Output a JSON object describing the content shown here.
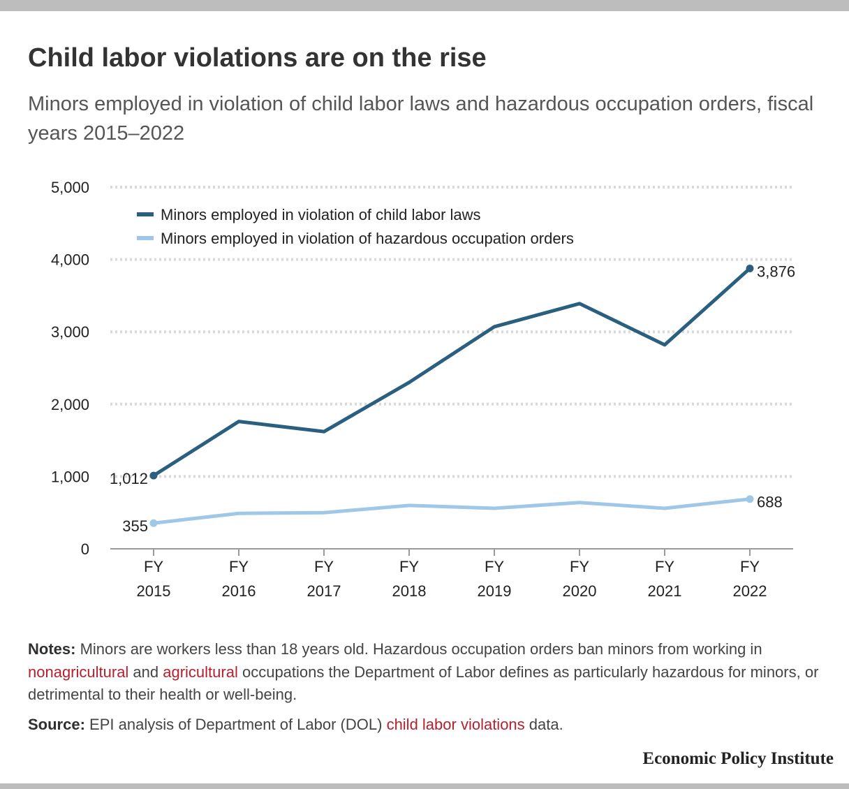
{
  "header": {
    "title": "Child labor violations are on the rise",
    "subtitle": "Minors employed in violation of child labor laws and hazardous occupation orders, fiscal years 2015–2022"
  },
  "chart_data": {
    "type": "line",
    "x": [
      "FY 2015",
      "FY 2016",
      "FY 2017",
      "FY 2018",
      "FY 2019",
      "FY 2020",
      "FY 2021",
      "FY 2022"
    ],
    "x_tick_lines": [
      [
        "FY",
        "2015"
      ],
      [
        "FY",
        "2016"
      ],
      [
        "FY",
        "2017"
      ],
      [
        "FY",
        "2018"
      ],
      [
        "FY",
        "2019"
      ],
      [
        "FY",
        "2020"
      ],
      [
        "FY",
        "2021"
      ],
      [
        "FY",
        "2022"
      ]
    ],
    "ylim": [
      0,
      5000
    ],
    "y_ticks": [
      0,
      1000,
      2000,
      3000,
      4000,
      5000
    ],
    "y_tick_labels": [
      "0",
      "1,000",
      "2,000",
      "3,000",
      "4,000",
      "5,000"
    ],
    "grid": true,
    "legend_position": "top-left",
    "series": [
      {
        "name": "Minors employed in violation of child labor laws",
        "color": "#2b5f7f",
        "values": [
          1012,
          1760,
          1620,
          2300,
          3070,
          3390,
          2820,
          3876
        ],
        "end_labels": {
          "first": "1,012",
          "last": "3,876"
        }
      },
      {
        "name": "Minors employed in violation of hazardous occupation orders",
        "color": "#9fc8e8",
        "values": [
          355,
          490,
          500,
          600,
          560,
          640,
          560,
          688
        ],
        "end_labels": {
          "first": "355",
          "last": "688"
        }
      }
    ]
  },
  "notes": {
    "label": "Notes:",
    "text_1": " Minors are workers less than 18 years old. Hazardous occupation orders ban minors from working in ",
    "link_1": "nonagricultural",
    "text_2": " and ",
    "link_2": "agricultural",
    "text_3": " occupations the Department of Labor defines as particularly hazardous for minors, or detrimental to their health or well-being."
  },
  "source": {
    "label": "Source:",
    "text_1": " EPI analysis of Department of Labor (DOL) ",
    "link_1": "child labor violations",
    "text_2": " data."
  },
  "brand": "Economic Policy Institute"
}
